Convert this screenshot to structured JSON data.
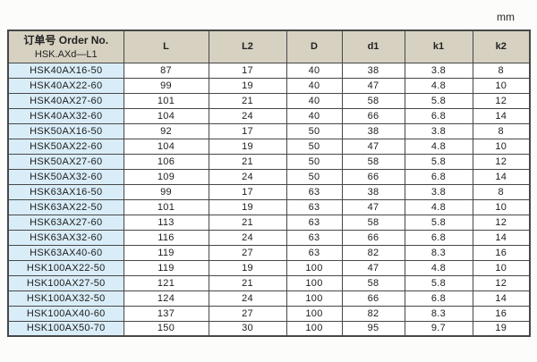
{
  "unit_label": "mm",
  "table": {
    "header": {
      "order_line1": "订单号 Order No.",
      "order_line2": "HSK.AXd—L1",
      "columns": [
        "L",
        "L2",
        "D",
        "d1",
        "k1",
        "k2"
      ]
    },
    "rows": [
      [
        "HSK40AX16-50",
        "87",
        "17",
        "40",
        "38",
        "3.8",
        "8"
      ],
      [
        "HSK40AX22-60",
        "99",
        "19",
        "40",
        "47",
        "4.8",
        "10"
      ],
      [
        "HSK40AX27-60",
        "101",
        "21",
        "40",
        "58",
        "5.8",
        "12"
      ],
      [
        "HSK40AX32-60",
        "104",
        "24",
        "40",
        "66",
        "6.8",
        "14"
      ],
      [
        "HSK50AX16-50",
        "92",
        "17",
        "50",
        "38",
        "3.8",
        "8"
      ],
      [
        "HSK50AX22-60",
        "104",
        "19",
        "50",
        "47",
        "4.8",
        "10"
      ],
      [
        "HSK50AX27-60",
        "106",
        "21",
        "50",
        "58",
        "5.8",
        "12"
      ],
      [
        "HSK50AX32-60",
        "109",
        "24",
        "50",
        "66",
        "6.8",
        "14"
      ],
      [
        "HSK63AX16-50",
        "99",
        "17",
        "63",
        "38",
        "3.8",
        "8"
      ],
      [
        "HSK63AX22-50",
        "101",
        "19",
        "63",
        "47",
        "4.8",
        "10"
      ],
      [
        "HSK63AX27-60",
        "113",
        "21",
        "63",
        "58",
        "5.8",
        "12"
      ],
      [
        "HSK63AX32-60",
        "116",
        "24",
        "63",
        "66",
        "6.8",
        "14"
      ],
      [
        "HSK63AX40-60",
        "119",
        "27",
        "63",
        "82",
        "8.3",
        "16"
      ],
      [
        "HSK100AX22-50",
        "119",
        "19",
        "100",
        "47",
        "4.8",
        "10"
      ],
      [
        "HSK100AX27-50",
        "121",
        "21",
        "100",
        "58",
        "5.8",
        "12"
      ],
      [
        "HSK100AX32-50",
        "124",
        "24",
        "100",
        "66",
        "6.8",
        "14"
      ],
      [
        "HSK100AX40-60",
        "137",
        "27",
        "100",
        "82",
        "8.3",
        "16"
      ],
      [
        "HSK100AX50-70",
        "150",
        "30",
        "100",
        "95",
        "9.7",
        "19"
      ]
    ]
  },
  "colors": {
    "header_bg": "#d6d1c1",
    "order_col_bg": "#d9edf8",
    "border": "#474747",
    "text": "#1d1d1d",
    "page_bg": "#fcfcfb"
  }
}
